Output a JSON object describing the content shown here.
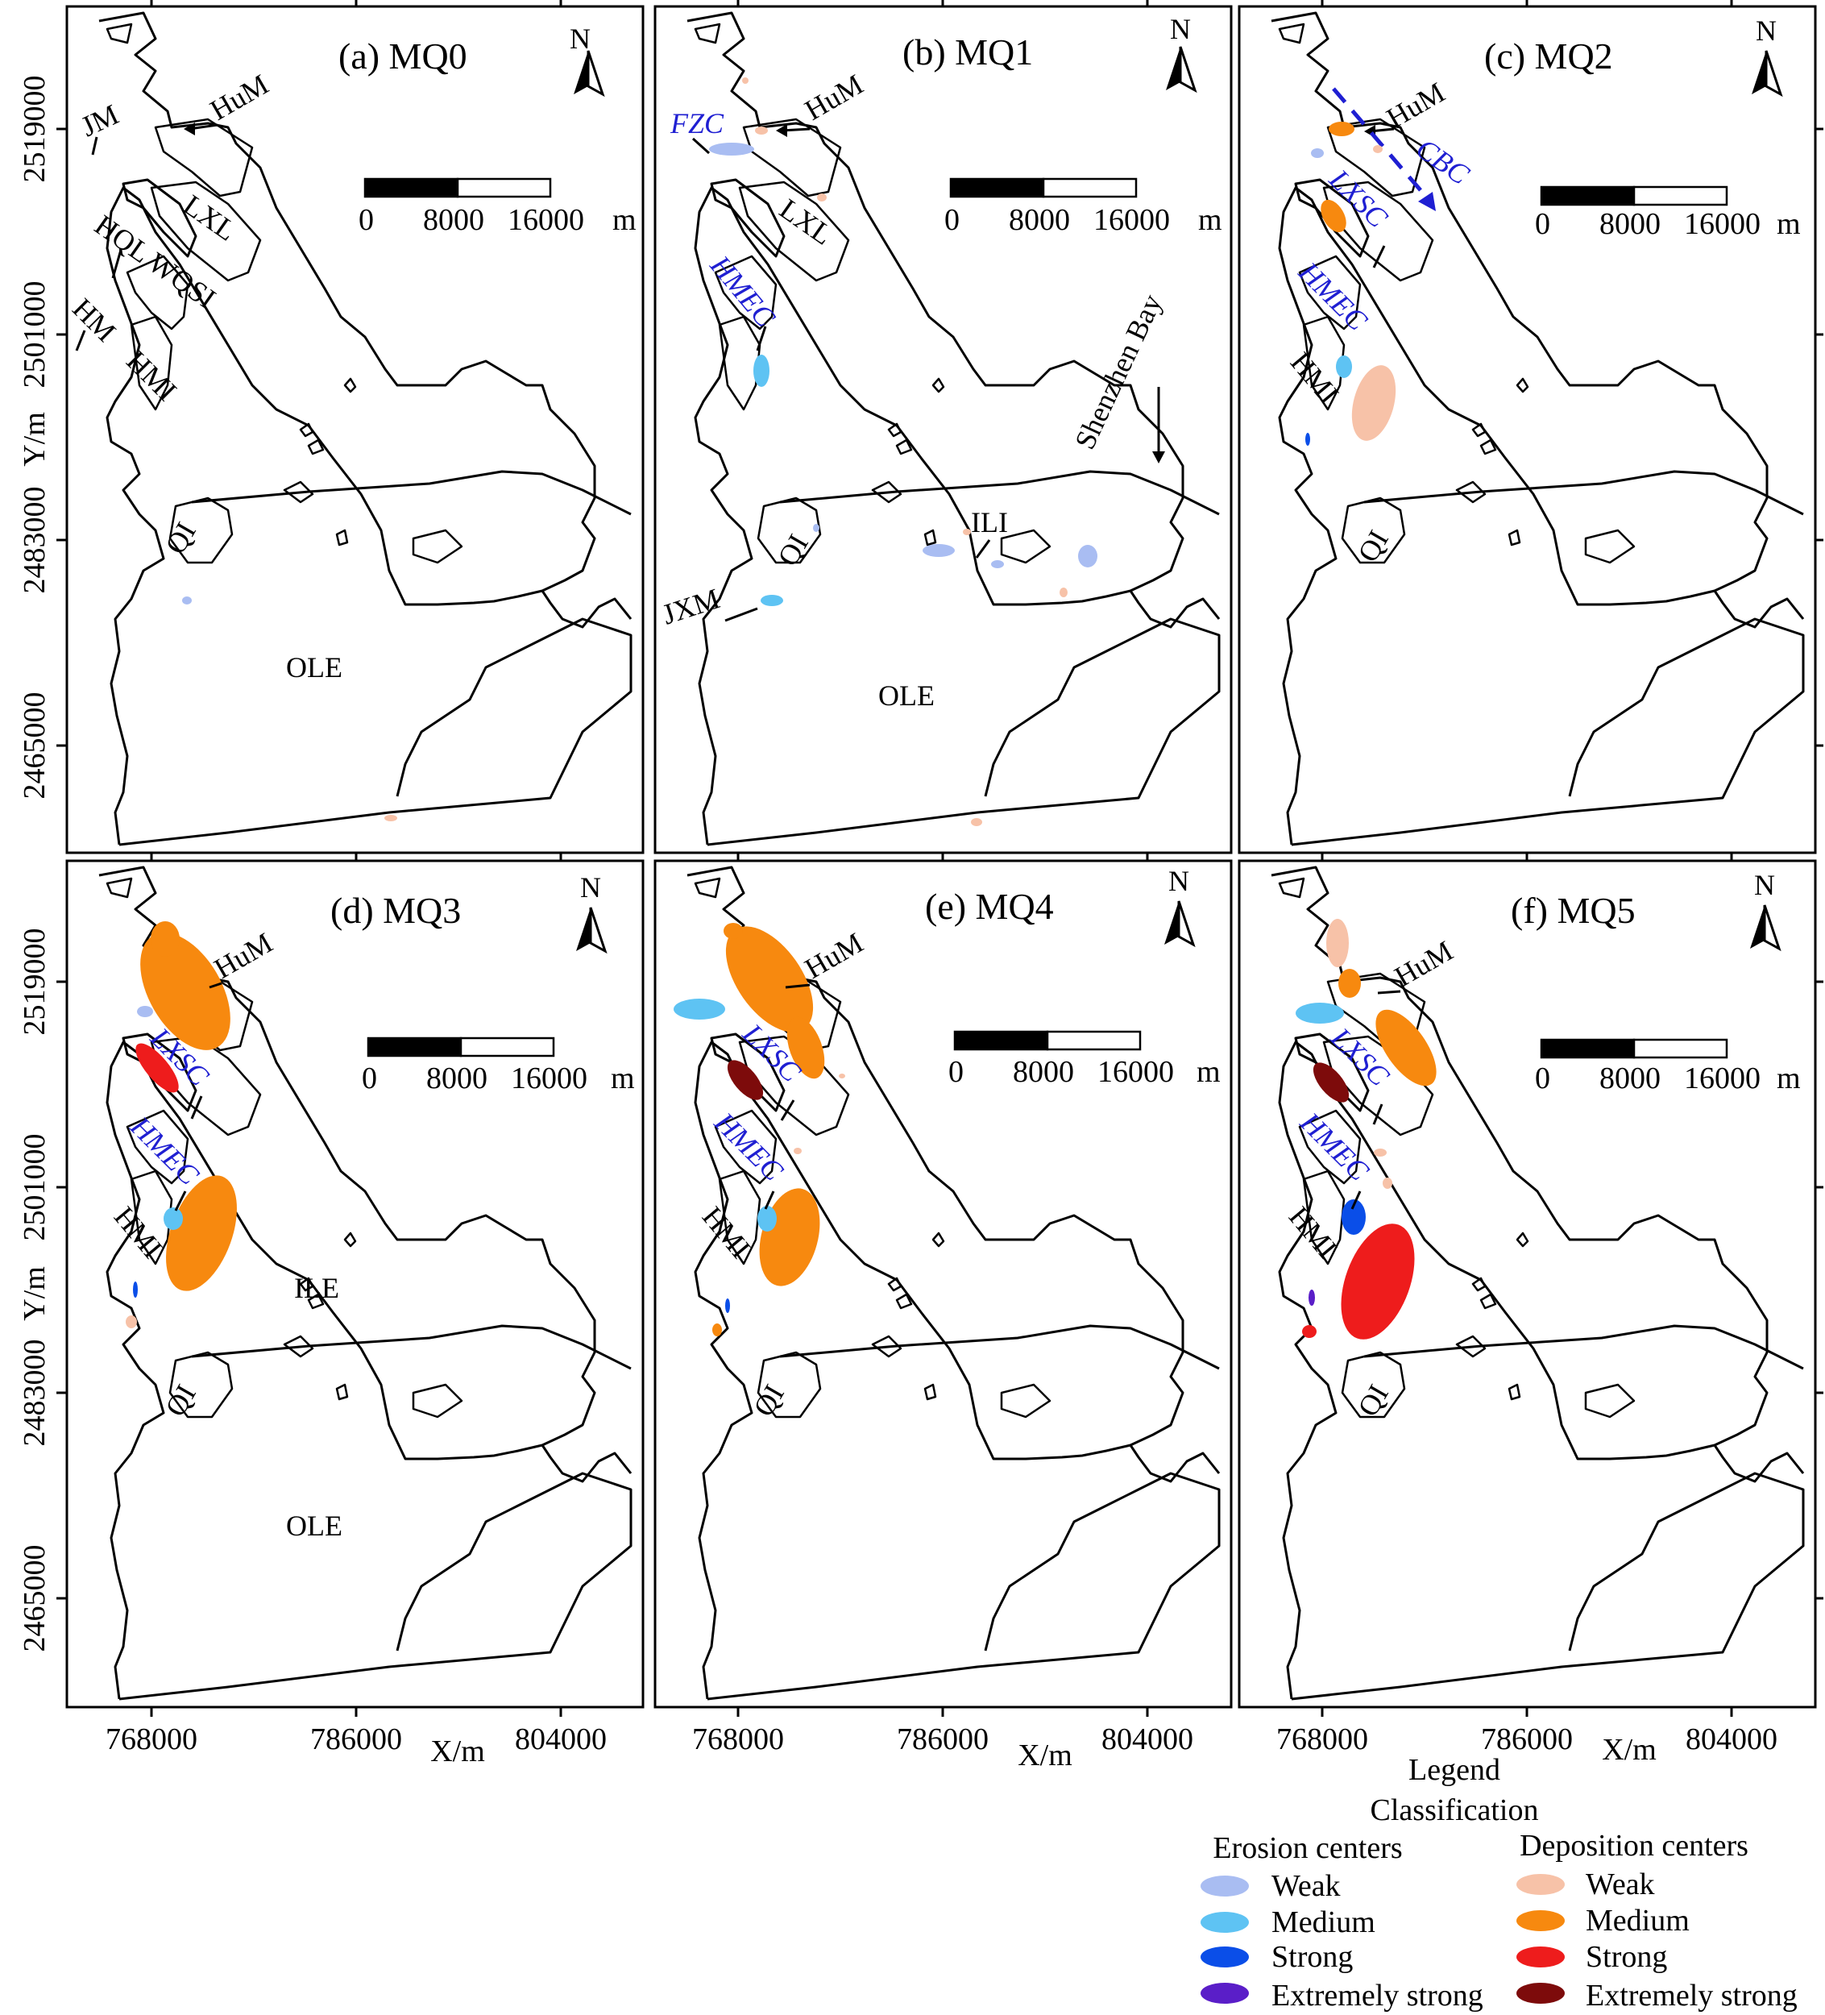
{
  "colors": {
    "erosion_weak": "#a9bdf2",
    "erosion_medium": "#5ec3f3",
    "erosion_strong": "#0a4ee8",
    "erosion_extreme": "#5a1ec8",
    "deposition_weak": "#f7c2a8",
    "deposition_medium": "#f7890f",
    "deposition_strong": "#ee1c1c",
    "deposition_extreme": "#7d0b0b",
    "label_blue": "#1f1fd2"
  },
  "axes": {
    "y_label": "Y/m",
    "x_label": "X/m",
    "y_ticks": [
      "2519000",
      "2501000",
      "2483000",
      "2465000"
    ],
    "x_ticks": [
      "768000",
      "786000",
      "804000"
    ]
  },
  "scale_bar": {
    "zero": "0",
    "mid": "8000",
    "max": "16000",
    "unit": "m"
  },
  "north_label": "N",
  "panels": [
    {
      "id": "a",
      "title": "(a) MQ0",
      "labels": [
        "HuM",
        "JM",
        "LXL",
        "HQL WQSI",
        "HM",
        "HMI",
        "QI",
        "OLE"
      ]
    },
    {
      "id": "b",
      "title": "(b) MQ1",
      "labels": [
        "HuM",
        "FZC",
        "LXL",
        "HMEC",
        "Shenzhen Bay",
        "ILI",
        "QI",
        "JXM",
        "OLE"
      ]
    },
    {
      "id": "c",
      "title": "(c) MQ2",
      "labels": [
        "HuM",
        "CBC",
        "LXSC",
        "HMEC",
        "HMI",
        "QI"
      ]
    },
    {
      "id": "d",
      "title": "(d) MQ3",
      "labels": [
        "HuM",
        "LXSC",
        "HMEC",
        "HMI",
        "ILE",
        "QI",
        "OLE"
      ]
    },
    {
      "id": "e",
      "title": "(e) MQ4",
      "labels": [
        "HuM",
        "LXSC",
        "HMEC",
        "HMI",
        "QI"
      ]
    },
    {
      "id": "f",
      "title": "(f) MQ5",
      "labels": [
        "HuM",
        "LXSC",
        "HMEC",
        "HMI",
        "QI"
      ]
    }
  ],
  "legend": {
    "title": "Legend",
    "subtitle": "Classification",
    "erosion_header": "Erosion centers",
    "deposition_header": "Deposition centers",
    "erosion": [
      "Weak",
      "Medium",
      "Strong",
      "Extremely strong"
    ],
    "deposition": [
      "Weak",
      "Medium",
      "Strong",
      "Extremely strong"
    ]
  }
}
